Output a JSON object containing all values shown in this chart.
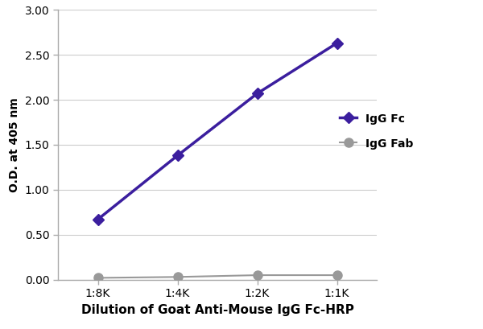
{
  "x_positions": [
    0,
    1,
    2,
    3
  ],
  "x_labels": [
    "1:8K",
    "1:4K",
    "1:2K",
    "1:1K"
  ],
  "igg_fc_values": [
    0.67,
    1.38,
    2.07,
    2.63
  ],
  "igg_fab_values": [
    0.02,
    0.03,
    0.05,
    0.05
  ],
  "igg_fc_color": "#3b1e9e",
  "igg_fab_color": "#999999",
  "igg_fc_label": "IgG Fc",
  "igg_fab_label": "IgG Fab",
  "xlabel": "Dilution of Goat Anti-Mouse IgG Fc-HRP",
  "ylabel": "O.D. at 405 nm",
  "ylim": [
    0.0,
    3.0
  ],
  "yticks": [
    0.0,
    0.5,
    1.0,
    1.5,
    2.0,
    2.5,
    3.0
  ],
  "fc_marker": "D",
  "fab_marker": "o",
  "fc_linewidth": 2.5,
  "fab_linewidth": 1.5,
  "fc_markersize": 7,
  "fab_markersize": 8,
  "background_color": "#ffffff",
  "plot_bg_color": "#ffffff",
  "grid_color": "#cccccc",
  "spine_color": "#aaaaaa",
  "xlabel_fontsize": 11,
  "ylabel_fontsize": 10,
  "tick_fontsize": 10,
  "legend_fontsize": 10
}
